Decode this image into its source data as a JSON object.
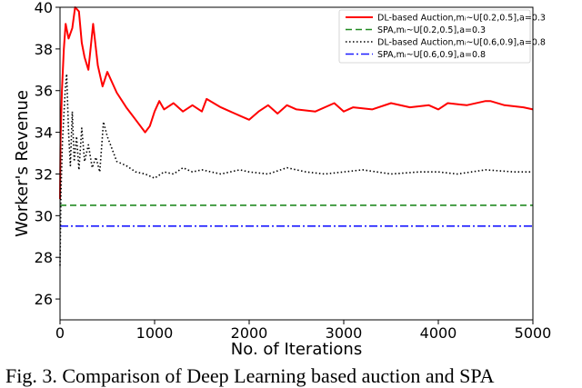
{
  "caption": "Fig. 3. Comparison of Deep Learning based auction and SPA",
  "chart_data": {
    "type": "line",
    "xlabel": "No. of Iterations",
    "ylabel": "Worker's Revenue",
    "xlim": [
      0,
      5000
    ],
    "ylim": [
      25,
      40
    ],
    "xticks": [
      0,
      1000,
      2000,
      3000,
      4000,
      5000
    ],
    "yticks": [
      26,
      28,
      30,
      32,
      34,
      36,
      38,
      40
    ],
    "grid": false,
    "legend_position": "top-right",
    "series": [
      {
        "name": "DL-based Auction,mᵢ~U[0.2,0.5],a=0.3",
        "color": "#ff0000",
        "style": "solid",
        "x": [
          0,
          5,
          20,
          40,
          60,
          90,
          130,
          160,
          200,
          230,
          260,
          300,
          350,
          400,
          450,
          500,
          600,
          700,
          800,
          900,
          950,
          1000,
          1050,
          1100,
          1200,
          1300,
          1400,
          1500,
          1550,
          1700,
          1900,
          2000,
          2100,
          2200,
          2300,
          2400,
          2500,
          2700,
          2900,
          3000,
          3100,
          3300,
          3500,
          3700,
          3900,
          4000,
          4100,
          4300,
          4500,
          4550,
          4700,
          4900,
          5000
        ],
        "y": [
          30.8,
          33.5,
          36.0,
          38.0,
          39.2,
          38.5,
          39.0,
          40.2,
          39.8,
          38.3,
          37.6,
          37.0,
          39.2,
          37.2,
          36.2,
          36.9,
          35.9,
          35.2,
          34.6,
          34.0,
          34.3,
          35.0,
          35.5,
          35.1,
          35.4,
          35.0,
          35.3,
          35.0,
          35.6,
          35.2,
          34.8,
          34.6,
          35.0,
          35.3,
          34.9,
          35.3,
          35.1,
          35.0,
          35.4,
          35.0,
          35.2,
          35.1,
          35.4,
          35.2,
          35.3,
          35.1,
          35.4,
          35.3,
          35.5,
          35.5,
          35.3,
          35.2,
          35.1
        ]
      },
      {
        "name": "SPA,mᵢ~U[0.2,0.5],a=0.3",
        "color": "#228b22",
        "style": "dashed",
        "x": [
          0,
          5000
        ],
        "y": [
          30.5,
          30.5
        ]
      },
      {
        "name": "DL-based Auction,mᵢ~U[0.6,0.9],a=0.8",
        "color": "#000000",
        "style": "dotted",
        "x": [
          0,
          10,
          25,
          40,
          55,
          70,
          90,
          110,
          130,
          150,
          175,
          200,
          230,
          260,
          300,
          340,
          380,
          420,
          460,
          500,
          550,
          600,
          700,
          800,
          900,
          1000,
          1100,
          1200,
          1300,
          1400,
          1500,
          1700,
          1900,
          2000,
          2200,
          2400,
          2600,
          2800,
          3000,
          3200,
          3500,
          3800,
          4000,
          4200,
          4500,
          4800,
          5000
        ],
        "y": [
          27.6,
          31.0,
          33.5,
          34.8,
          36.0,
          36.8,
          34.0,
          32.4,
          35.0,
          32.6,
          33.8,
          32.2,
          34.2,
          32.6,
          33.4,
          32.3,
          32.8,
          32.1,
          34.5,
          33.8,
          33.2,
          32.6,
          32.4,
          32.1,
          32.0,
          31.8,
          32.1,
          32.0,
          32.3,
          32.1,
          32.2,
          32.0,
          32.2,
          32.1,
          32.0,
          32.3,
          32.1,
          32.0,
          32.1,
          32.2,
          32.0,
          32.1,
          32.1,
          32.0,
          32.2,
          32.1,
          32.1
        ]
      },
      {
        "name": "SPA,mᵢ~U[0.6,0.9],a=0.8",
        "color": "#1a1aff",
        "style": "dashdot",
        "x": [
          0,
          5000
        ],
        "y": [
          29.5,
          29.5
        ]
      }
    ]
  }
}
